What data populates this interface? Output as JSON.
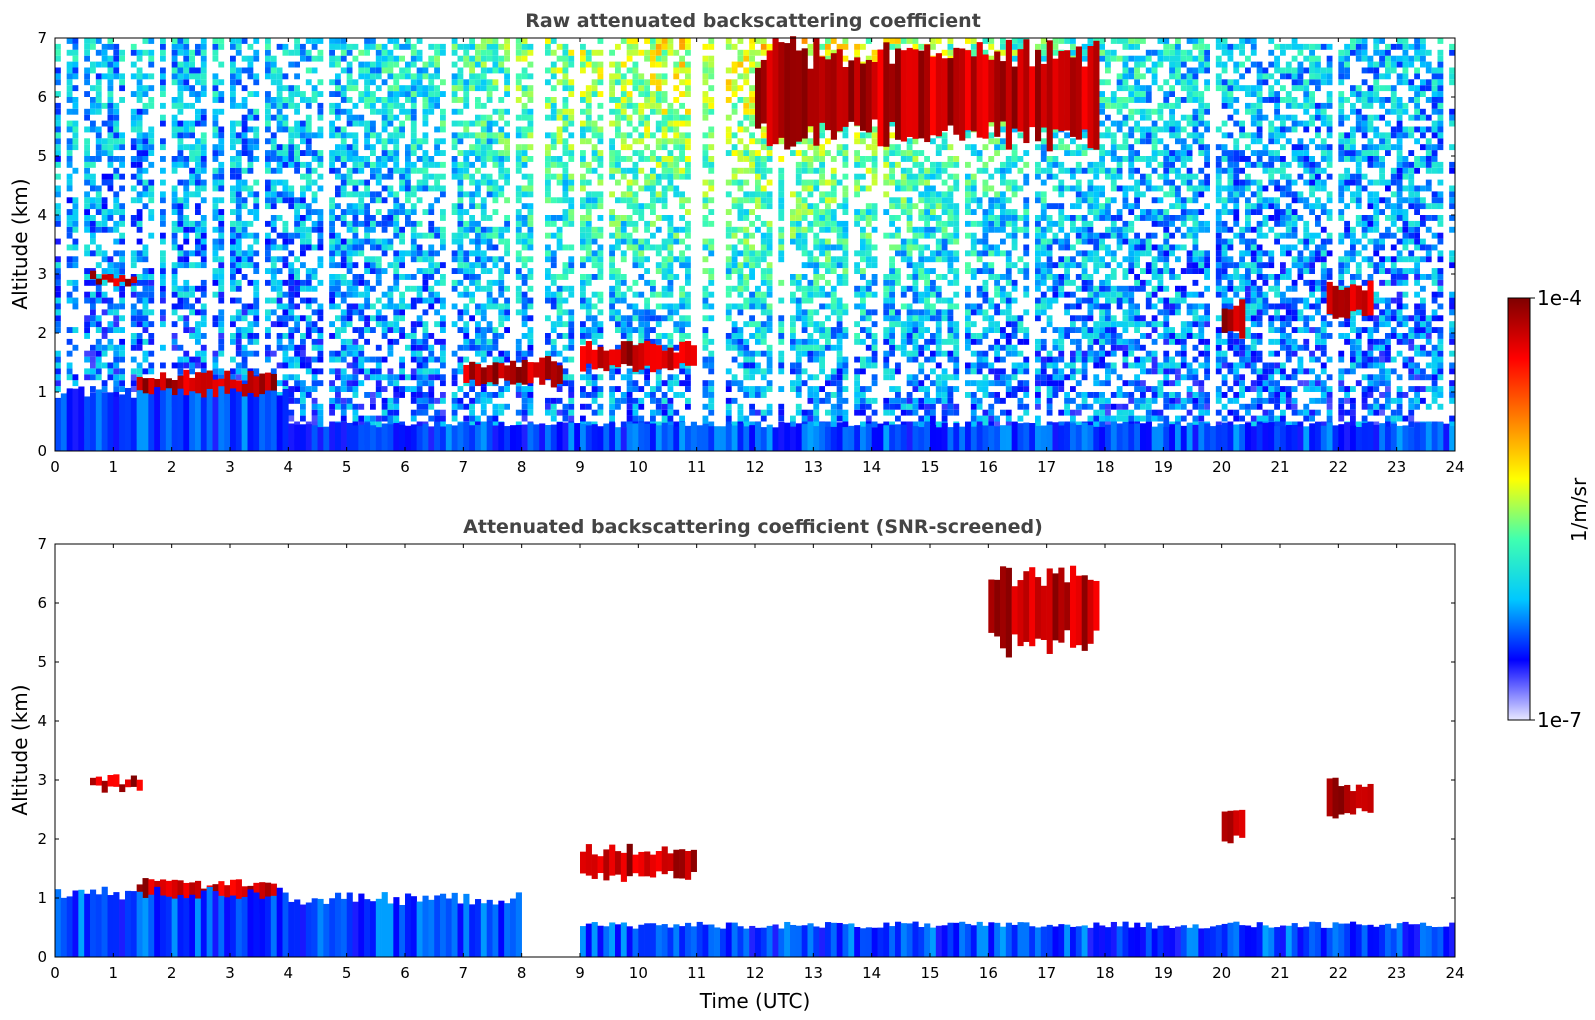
{
  "chart_data": [
    {
      "type": "heatmap",
      "title": "Raw attenuated backscattering coefficient",
      "xlabel": "",
      "ylabel": "Altitude (km)",
      "xlim": [
        0,
        24
      ],
      "ylim": [
        0,
        7
      ],
      "xticks": [
        "0",
        "1",
        "2",
        "3",
        "4",
        "5",
        "6",
        "7",
        "8",
        "9",
        "10",
        "11",
        "12",
        "13",
        "14",
        "15",
        "16",
        "17",
        "18",
        "19",
        "20",
        "21",
        "22",
        "23",
        "24"
      ],
      "yticks": [
        "0",
        "1",
        "2",
        "3",
        "4",
        "5",
        "6",
        "7"
      ],
      "features": [
        {
          "kind": "cloud",
          "t0": 0.6,
          "t1": 1.4,
          "z0": 2.85,
          "z1": 3.0
        },
        {
          "kind": "cloud",
          "t0": 1.4,
          "t1": 3.8,
          "z0": 0.75,
          "z1": 1.35
        },
        {
          "kind": "cloud",
          "t0": 9.0,
          "t1": 11.0,
          "z0": 1.35,
          "z1": 1.85
        },
        {
          "kind": "cloud",
          "t0": 7.0,
          "t1": 8.7,
          "z0": 1.1,
          "z1": 1.6
        },
        {
          "kind": "cloud",
          "t0": 12.0,
          "t1": 17.9,
          "z0": 5.1,
          "z1": 7.0
        },
        {
          "kind": "cloud",
          "t0": 20.0,
          "t1": 20.4,
          "z0": 1.9,
          "z1": 2.6
        },
        {
          "kind": "cloud",
          "t0": 21.8,
          "t1": 22.6,
          "z0": 2.2,
          "z1": 2.9
        },
        {
          "kind": "boundary_layer",
          "t0": 0.0,
          "t1": 4.0,
          "z0": 0.0,
          "z1": 1.1
        },
        {
          "kind": "boundary_layer",
          "t0": 4.0,
          "t1": 24.0,
          "z0": 0.0,
          "z1": 0.5
        }
      ]
    },
    {
      "type": "heatmap",
      "title": "Attenuated backscattering coefficient (SNR-screened)",
      "xlabel": "Time (UTC)",
      "ylabel": "Altitude (km)",
      "xlim": [
        0,
        24
      ],
      "ylim": [
        0,
        7
      ],
      "xticks": [
        "0",
        "1",
        "2",
        "3",
        "4",
        "5",
        "6",
        "7",
        "8",
        "9",
        "10",
        "11",
        "12",
        "13",
        "14",
        "15",
        "16",
        "17",
        "18",
        "19",
        "20",
        "21",
        "22",
        "23",
        "24"
      ],
      "yticks": [
        "0",
        "1",
        "2",
        "3",
        "4",
        "5",
        "6",
        "7"
      ],
      "features": [
        {
          "kind": "cloud",
          "t0": 0.6,
          "t1": 1.5,
          "z0": 2.8,
          "z1": 3.05
        },
        {
          "kind": "cloud",
          "t0": 1.4,
          "t1": 3.8,
          "z0": 0.75,
          "z1": 1.35
        },
        {
          "kind": "cloud",
          "t0": 9.0,
          "t1": 11.0,
          "z0": 1.3,
          "z1": 1.85
        },
        {
          "kind": "cloud",
          "t0": 16.0,
          "t1": 17.9,
          "z0": 5.1,
          "z1": 6.7
        },
        {
          "kind": "cloud",
          "t0": 20.0,
          "t1": 20.4,
          "z0": 1.9,
          "z1": 2.6
        },
        {
          "kind": "cloud",
          "t0": 21.8,
          "t1": 22.6,
          "z0": 2.3,
          "z1": 3.0
        },
        {
          "kind": "boundary_layer",
          "t0": 0.0,
          "t1": 4.0,
          "z0": 0.0,
          "z1": 1.2
        },
        {
          "kind": "boundary_layer",
          "t0": 4.0,
          "t1": 8.0,
          "z0": 0.0,
          "z1": 1.1
        },
        {
          "kind": "boundary_layer",
          "t0": 9.0,
          "t1": 24.0,
          "z0": 0.0,
          "z1": 0.6
        }
      ]
    }
  ],
  "colorbar": {
    "label": "1/m/sr",
    "max_label": "1e-4",
    "min_label": "1e-7",
    "range": [
      1e-07,
      0.0001
    ],
    "scale": "log",
    "colormap": [
      "#e8e8ff",
      "#0000ff",
      "#00c8ff",
      "#40ffb0",
      "#ffff00",
      "#ff7f00",
      "#ff0000",
      "#7f0000"
    ]
  }
}
